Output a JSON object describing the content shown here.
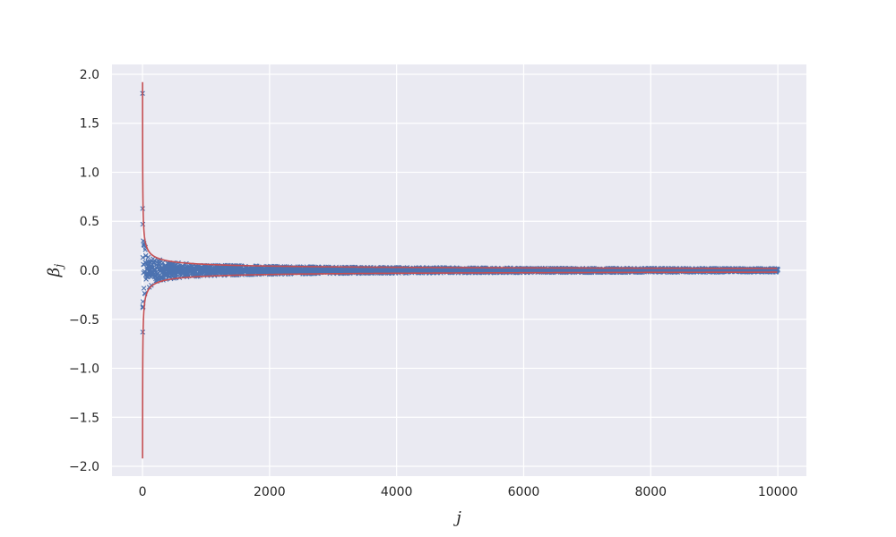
{
  "chart_data": {
    "type": "scatter",
    "title": "",
    "xlabel": "j",
    "ylabel": "β",
    "ylabel_subscript": "j",
    "xlim": [
      -480,
      10450
    ],
    "ylim": [
      -2.1,
      2.1
    ],
    "xticks": [
      0,
      2000,
      4000,
      6000,
      8000,
      10000
    ],
    "xtick_labels": [
      "0",
      "2000",
      "4000",
      "6000",
      "8000",
      "10000"
    ],
    "yticks": [
      2.0,
      1.5,
      1.0,
      0.5,
      0.0,
      -0.5,
      -1.0,
      -1.5,
      -2.0
    ],
    "ytick_labels": [
      "2.0",
      "1.5",
      "1.0",
      "0.5",
      "0.0",
      "−0.5",
      "−1.0",
      "−1.5",
      "−2.0"
    ],
    "grid": true,
    "background_color": "#eaeaf2",
    "series": [
      {
        "kind": "scatter",
        "marker": "x",
        "color": "#4c72b0",
        "n_points": 10000,
        "x_range": [
          1,
          10000
        ],
        "noise_amplitude_at_1": 1.9,
        "noise_decay": "amplitude ≈ 1.9 / sqrt(j)",
        "notable_points": [
          {
            "x": 3,
            "y": 0.63
          },
          {
            "x": 5,
            "y": 0.47
          },
          {
            "x": 4,
            "y": -0.63
          },
          {
            "x": 6,
            "y": -0.37
          },
          {
            "x": 8,
            "y": -0.32
          },
          {
            "x": 12,
            "y": 0.3
          },
          {
            "x": 20,
            "y": 0.26
          }
        ]
      },
      {
        "kind": "envelope",
        "color": "#c44e52",
        "formula": "±1.92/sqrt(j)",
        "coefficient": 1.92,
        "x_range": [
          1,
          10000
        ]
      }
    ]
  }
}
